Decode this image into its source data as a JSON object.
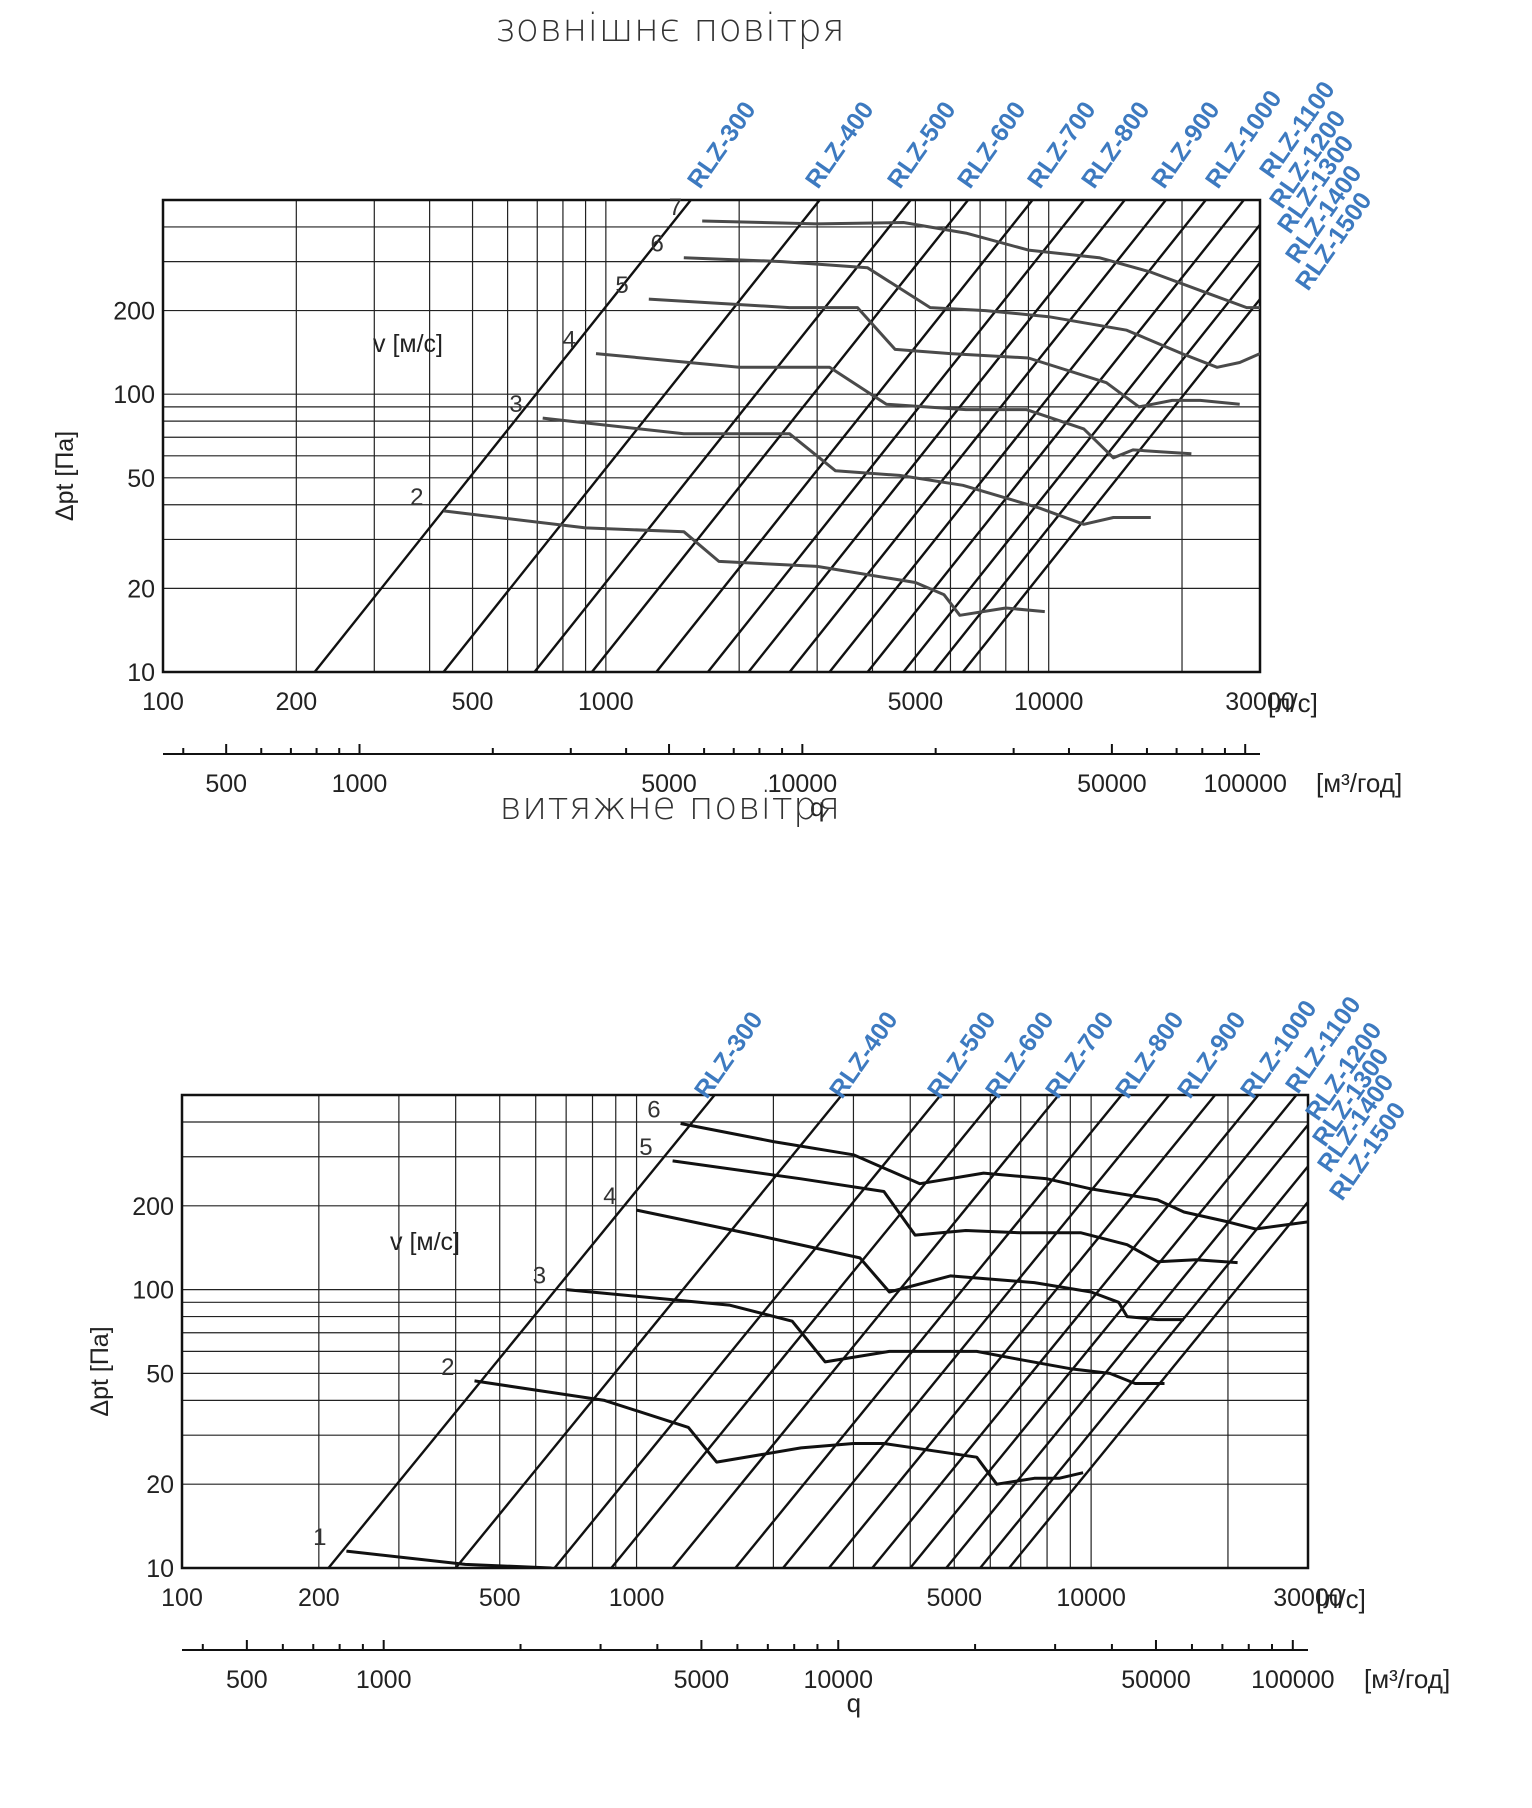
{
  "chart_data": [
    {
      "type": "line",
      "title": "зовнішнє повітря",
      "ylabel": "Δpt [Па]",
      "xlabel": "q",
      "x_unit": "[л/с]",
      "x2_unit": "[м³/год]",
      "speed_label": "v [м/с]",
      "xscale": "log",
      "yscale": "log",
      "xlim": [
        100,
        30000
      ],
      "ylim": [
        10,
        500
      ],
      "grid": true,
      "line_color": "#4a4a4a",
      "x_ticks": [
        {
          "value": 100,
          "label": "100"
        },
        {
          "value": 200,
          "label": "200"
        },
        {
          "value": 500,
          "label": "500"
        },
        {
          "value": 1000,
          "label": "1000"
        },
        {
          "value": 5000,
          "label": "5000"
        },
        {
          "value": 10000,
          "label": "10000"
        },
        {
          "value": 30000,
          "label": "30000"
        }
      ],
      "x2_ticks": [
        {
          "value": 500,
          "label": "500"
        },
        {
          "value": 1000,
          "label": "1000"
        },
        {
          "value": 5000,
          "label": "5000"
        },
        {
          "value": 10000,
          "label": "10000"
        },
        {
          "value": 50000,
          "label": "50000"
        },
        {
          "value": 100000,
          "label": "100000"
        }
      ],
      "y_ticks": [
        {
          "value": 10,
          "label": "10"
        },
        {
          "value": 20,
          "label": "20"
        },
        {
          "value": 50,
          "label": "50"
        },
        {
          "value": 100,
          "label": "100"
        },
        {
          "value": 200,
          "label": "200"
        }
      ],
      "models": [
        {
          "name": "RLZ-300",
          "q_at_10Pa": 220
        },
        {
          "name": "RLZ-400",
          "q_at_10Pa": 430
        },
        {
          "name": "RLZ-500",
          "q_at_10Pa": 690
        },
        {
          "name": "RLZ-600",
          "q_at_10Pa": 930
        },
        {
          "name": "RLZ-700",
          "q_at_10Pa": 1300
        },
        {
          "name": "RLZ-800",
          "q_at_10Pa": 1700
        },
        {
          "name": "RLZ-900",
          "q_at_10Pa": 2100
        },
        {
          "name": "RLZ-1000",
          "q_at_10Pa": 2600
        },
        {
          "name": "RLZ-1100",
          "q_at_10Pa": 3200
        },
        {
          "name": "RLZ-1200",
          "q_at_10Pa": 3900
        },
        {
          "name": "RLZ-1300",
          "q_at_10Pa": 4700
        },
        {
          "name": "RLZ-1400",
          "q_at_10Pa": 5500
        },
        {
          "name": "RLZ-1500",
          "q_at_10Pa": 6400
        }
      ],
      "series": [
        {
          "name": "2",
          "points": [
            [
              430,
              38
            ],
            [
              900,
              33
            ],
            [
              1500,
              32
            ],
            [
              1800,
              25
            ],
            [
              3000,
              24
            ],
            [
              5000,
              21
            ],
            [
              5800,
              19
            ],
            [
              6300,
              16
            ],
            [
              8000,
              17
            ],
            [
              9800,
              16.5
            ]
          ]
        },
        {
          "name": "3",
          "points": [
            [
              720,
              82
            ],
            [
              1500,
              72
            ],
            [
              2600,
              72
            ],
            [
              3300,
              53
            ],
            [
              4600,
              51
            ],
            [
              6400,
              47
            ],
            [
              9500,
              39
            ],
            [
              12000,
              34
            ],
            [
              14000,
              36
            ],
            [
              17000,
              36
            ]
          ]
        },
        {
          "name": "4",
          "points": [
            [
              950,
              140
            ],
            [
              2000,
              125
            ],
            [
              3200,
              125
            ],
            [
              4300,
              92
            ],
            [
              6500,
              88
            ],
            [
              8900,
              88
            ],
            [
              12000,
              75
            ],
            [
              14000,
              59
            ],
            [
              15500,
              63
            ],
            [
              18000,
              62
            ],
            [
              21000,
              61
            ]
          ]
        },
        {
          "name": "5",
          "points": [
            [
              1250,
              220
            ],
            [
              2600,
              205
            ],
            [
              3700,
              205
            ],
            [
              4500,
              145
            ],
            [
              6000,
              140
            ],
            [
              9000,
              135
            ],
            [
              13500,
              110
            ],
            [
              16000,
              90
            ],
            [
              19000,
              95
            ],
            [
              22000,
              95
            ],
            [
              27000,
              92
            ]
          ]
        },
        {
          "name": "6",
          "points": [
            [
              1500,
              310
            ],
            [
              2500,
              300
            ],
            [
              3900,
              285
            ],
            [
              5400,
              205
            ],
            [
              7200,
              200
            ],
            [
              10000,
              190
            ],
            [
              15000,
              170
            ],
            [
              20000,
              140
            ],
            [
              24000,
              125
            ],
            [
              27000,
              130
            ],
            [
              30000,
              140
            ]
          ]
        },
        {
          "name": "7",
          "points": [
            [
              1650,
              420
            ],
            [
              3000,
              410
            ],
            [
              4700,
              415
            ],
            [
              6500,
              380
            ],
            [
              9000,
              330
            ],
            [
              13000,
              310
            ],
            [
              17000,
              275
            ],
            [
              23000,
              230
            ],
            [
              28000,
              205
            ],
            [
              32000,
              205
            ]
          ]
        }
      ]
    },
    {
      "type": "line",
      "title": "витяжне повітря",
      "ylabel": "Δpt [Па]",
      "xlabel": "q",
      "x_unit": "[л/с]",
      "x2_unit": "[м³/год]",
      "speed_label": "v [м/с]",
      "xscale": "log",
      "yscale": "log",
      "xlim": [
        100,
        30000
      ],
      "ylim": [
        10,
        500
      ],
      "grid": true,
      "line_color": "#111111",
      "x_ticks": [
        {
          "value": 100,
          "label": "100"
        },
        {
          "value": 200,
          "label": "200"
        },
        {
          "value": 500,
          "label": "500"
        },
        {
          "value": 1000,
          "label": "1000"
        },
        {
          "value": 5000,
          "label": "5000"
        },
        {
          "value": 10000,
          "label": "10000"
        },
        {
          "value": 30000,
          "label": "30000"
        }
      ],
      "x2_ticks": [
        {
          "value": 500,
          "label": "500"
        },
        {
          "value": 1000,
          "label": "1000"
        },
        {
          "value": 5000,
          "label": "5000"
        },
        {
          "value": 10000,
          "label": "10000"
        },
        {
          "value": 50000,
          "label": "50000"
        },
        {
          "value": 100000,
          "label": "100000"
        }
      ],
      "y_ticks": [
        {
          "value": 10,
          "label": "10"
        },
        {
          "value": 20,
          "label": "20"
        },
        {
          "value": 50,
          "label": "50"
        },
        {
          "value": 100,
          "label": "100"
        },
        {
          "value": 200,
          "label": "200"
        }
      ],
      "models": [
        {
          "name": "RLZ-300",
          "q_at_10Pa": 210
        },
        {
          "name": "RLZ-400",
          "q_at_10Pa": 400
        },
        {
          "name": "RLZ-500",
          "q_at_10Pa": 660
        },
        {
          "name": "RLZ-600",
          "q_at_10Pa": 880
        },
        {
          "name": "RLZ-700",
          "q_at_10Pa": 1200
        },
        {
          "name": "RLZ-800",
          "q_at_10Pa": 1650
        },
        {
          "name": "RLZ-900",
          "q_at_10Pa": 2100
        },
        {
          "name": "RLZ-1000",
          "q_at_10Pa": 2650
        },
        {
          "name": "RLZ-1100",
          "q_at_10Pa": 3300
        },
        {
          "name": "RLZ-1200",
          "q_at_10Pa": 4000
        },
        {
          "name": "RLZ-1300",
          "q_at_10Pa": 4800
        },
        {
          "name": "RLZ-1400",
          "q_at_10Pa": 5700
        },
        {
          "name": "RLZ-1500",
          "q_at_10Pa": 6600
        }
      ],
      "series": [
        {
          "name": "1",
          "points": [
            [
              230,
              11.5
            ],
            [
              420,
              10.3
            ],
            [
              650,
              10
            ]
          ]
        },
        {
          "name": "2",
          "points": [
            [
              440,
              47
            ],
            [
              850,
              40
            ],
            [
              1300,
              32
            ],
            [
              1500,
              24
            ],
            [
              2300,
              27
            ],
            [
              3000,
              28
            ],
            [
              3500,
              28
            ],
            [
              5600,
              25
            ],
            [
              6200,
              20
            ],
            [
              7500,
              21
            ],
            [
              8500,
              21
            ],
            [
              9600,
              22
            ]
          ]
        },
        {
          "name": "3",
          "points": [
            [
              700,
              100
            ],
            [
              1600,
              88
            ],
            [
              2200,
              77
            ],
            [
              2600,
              55
            ],
            [
              3600,
              60
            ],
            [
              5600,
              60
            ],
            [
              7000,
              56
            ],
            [
              9000,
              52
            ],
            [
              11000,
              50
            ],
            [
              12500,
              46
            ],
            [
              14500,
              46
            ]
          ]
        },
        {
          "name": "4",
          "points": [
            [
              1000,
              193
            ],
            [
              1900,
              155
            ],
            [
              3100,
              130
            ],
            [
              3600,
              98
            ],
            [
              4900,
              112
            ],
            [
              7500,
              106
            ],
            [
              10000,
              98
            ],
            [
              11500,
              90
            ],
            [
              12000,
              80
            ],
            [
              14000,
              78
            ],
            [
              16000,
              78
            ]
          ]
        },
        {
          "name": "5",
          "points": [
            [
              1200,
              290
            ],
            [
              2300,
              250
            ],
            [
              3500,
              225
            ],
            [
              4100,
              157
            ],
            [
              5300,
              163
            ],
            [
              7000,
              160
            ],
            [
              9500,
              160
            ],
            [
              12000,
              145
            ],
            [
              14000,
              126
            ],
            [
              17000,
              128
            ],
            [
              21000,
              125
            ]
          ]
        },
        {
          "name": "6",
          "points": [
            [
              1250,
              395
            ],
            [
              2000,
              340
            ],
            [
              3000,
              305
            ],
            [
              4200,
              240
            ],
            [
              5800,
              262
            ],
            [
              8000,
              250
            ],
            [
              10000,
              230
            ],
            [
              14000,
              210
            ],
            [
              16000,
              190
            ],
            [
              20000,
              175
            ],
            [
              23000,
              165
            ],
            [
              30000,
              175
            ]
          ]
        }
      ]
    }
  ]
}
